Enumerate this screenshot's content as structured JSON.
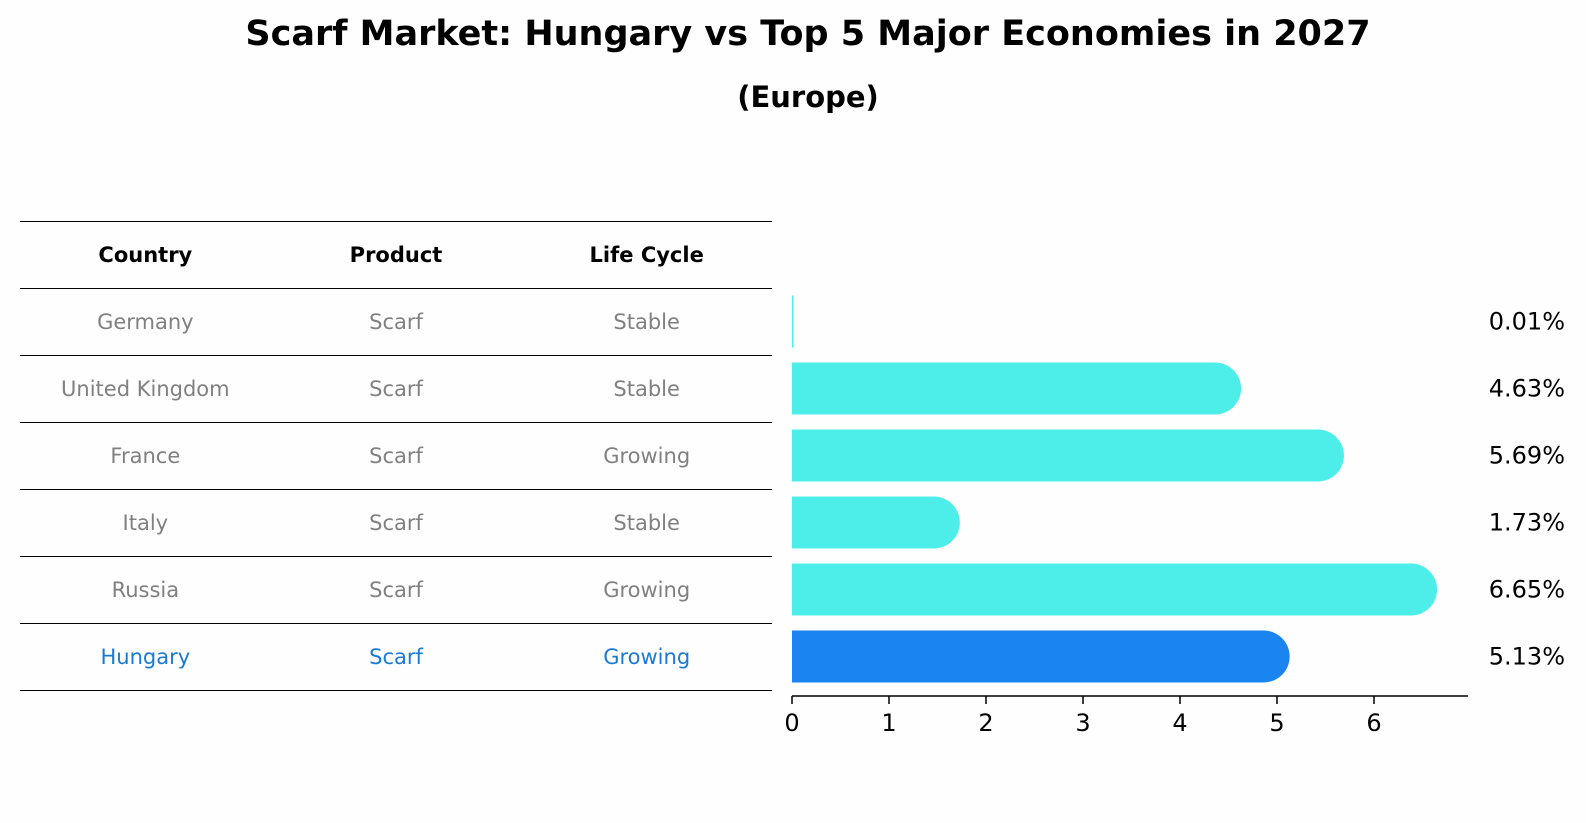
{
  "title": "Scarf Market: Hungary vs Top 5 Major Economies in 2027",
  "subtitle": "(Europe)",
  "table": {
    "headers": [
      "Country",
      "Product",
      "Life Cycle"
    ],
    "rows": [
      [
        "Germany",
        "Scarf",
        "Stable"
      ],
      [
        "United Kingdom",
        "Scarf",
        "Stable"
      ],
      [
        "France",
        "Scarf",
        "Growing"
      ],
      [
        "Italy",
        "Scarf",
        "Stable"
      ],
      [
        "Russia",
        "Scarf",
        "Growing"
      ],
      [
        "Hungary",
        "Scarf",
        "Growing"
      ]
    ],
    "highlight_row": 5
  },
  "chart_data": {
    "type": "bar",
    "orientation": "horizontal",
    "categories": [
      "Germany",
      "United Kingdom",
      "France",
      "Italy",
      "Russia",
      "Hungary"
    ],
    "values": [
      0.01,
      4.63,
      5.69,
      1.73,
      6.65,
      5.13
    ],
    "value_labels": [
      "0.01%",
      "4.63%",
      "5.69%",
      "1.73%",
      "6.65%",
      "5.13%"
    ],
    "xlim": [
      0,
      7
    ],
    "xticks": [
      0,
      1,
      2,
      3,
      4,
      5,
      6
    ],
    "grid": false,
    "colors": {
      "default": "#4deeea",
      "highlight": "#1a84f0"
    },
    "highlight_index": 5
  }
}
